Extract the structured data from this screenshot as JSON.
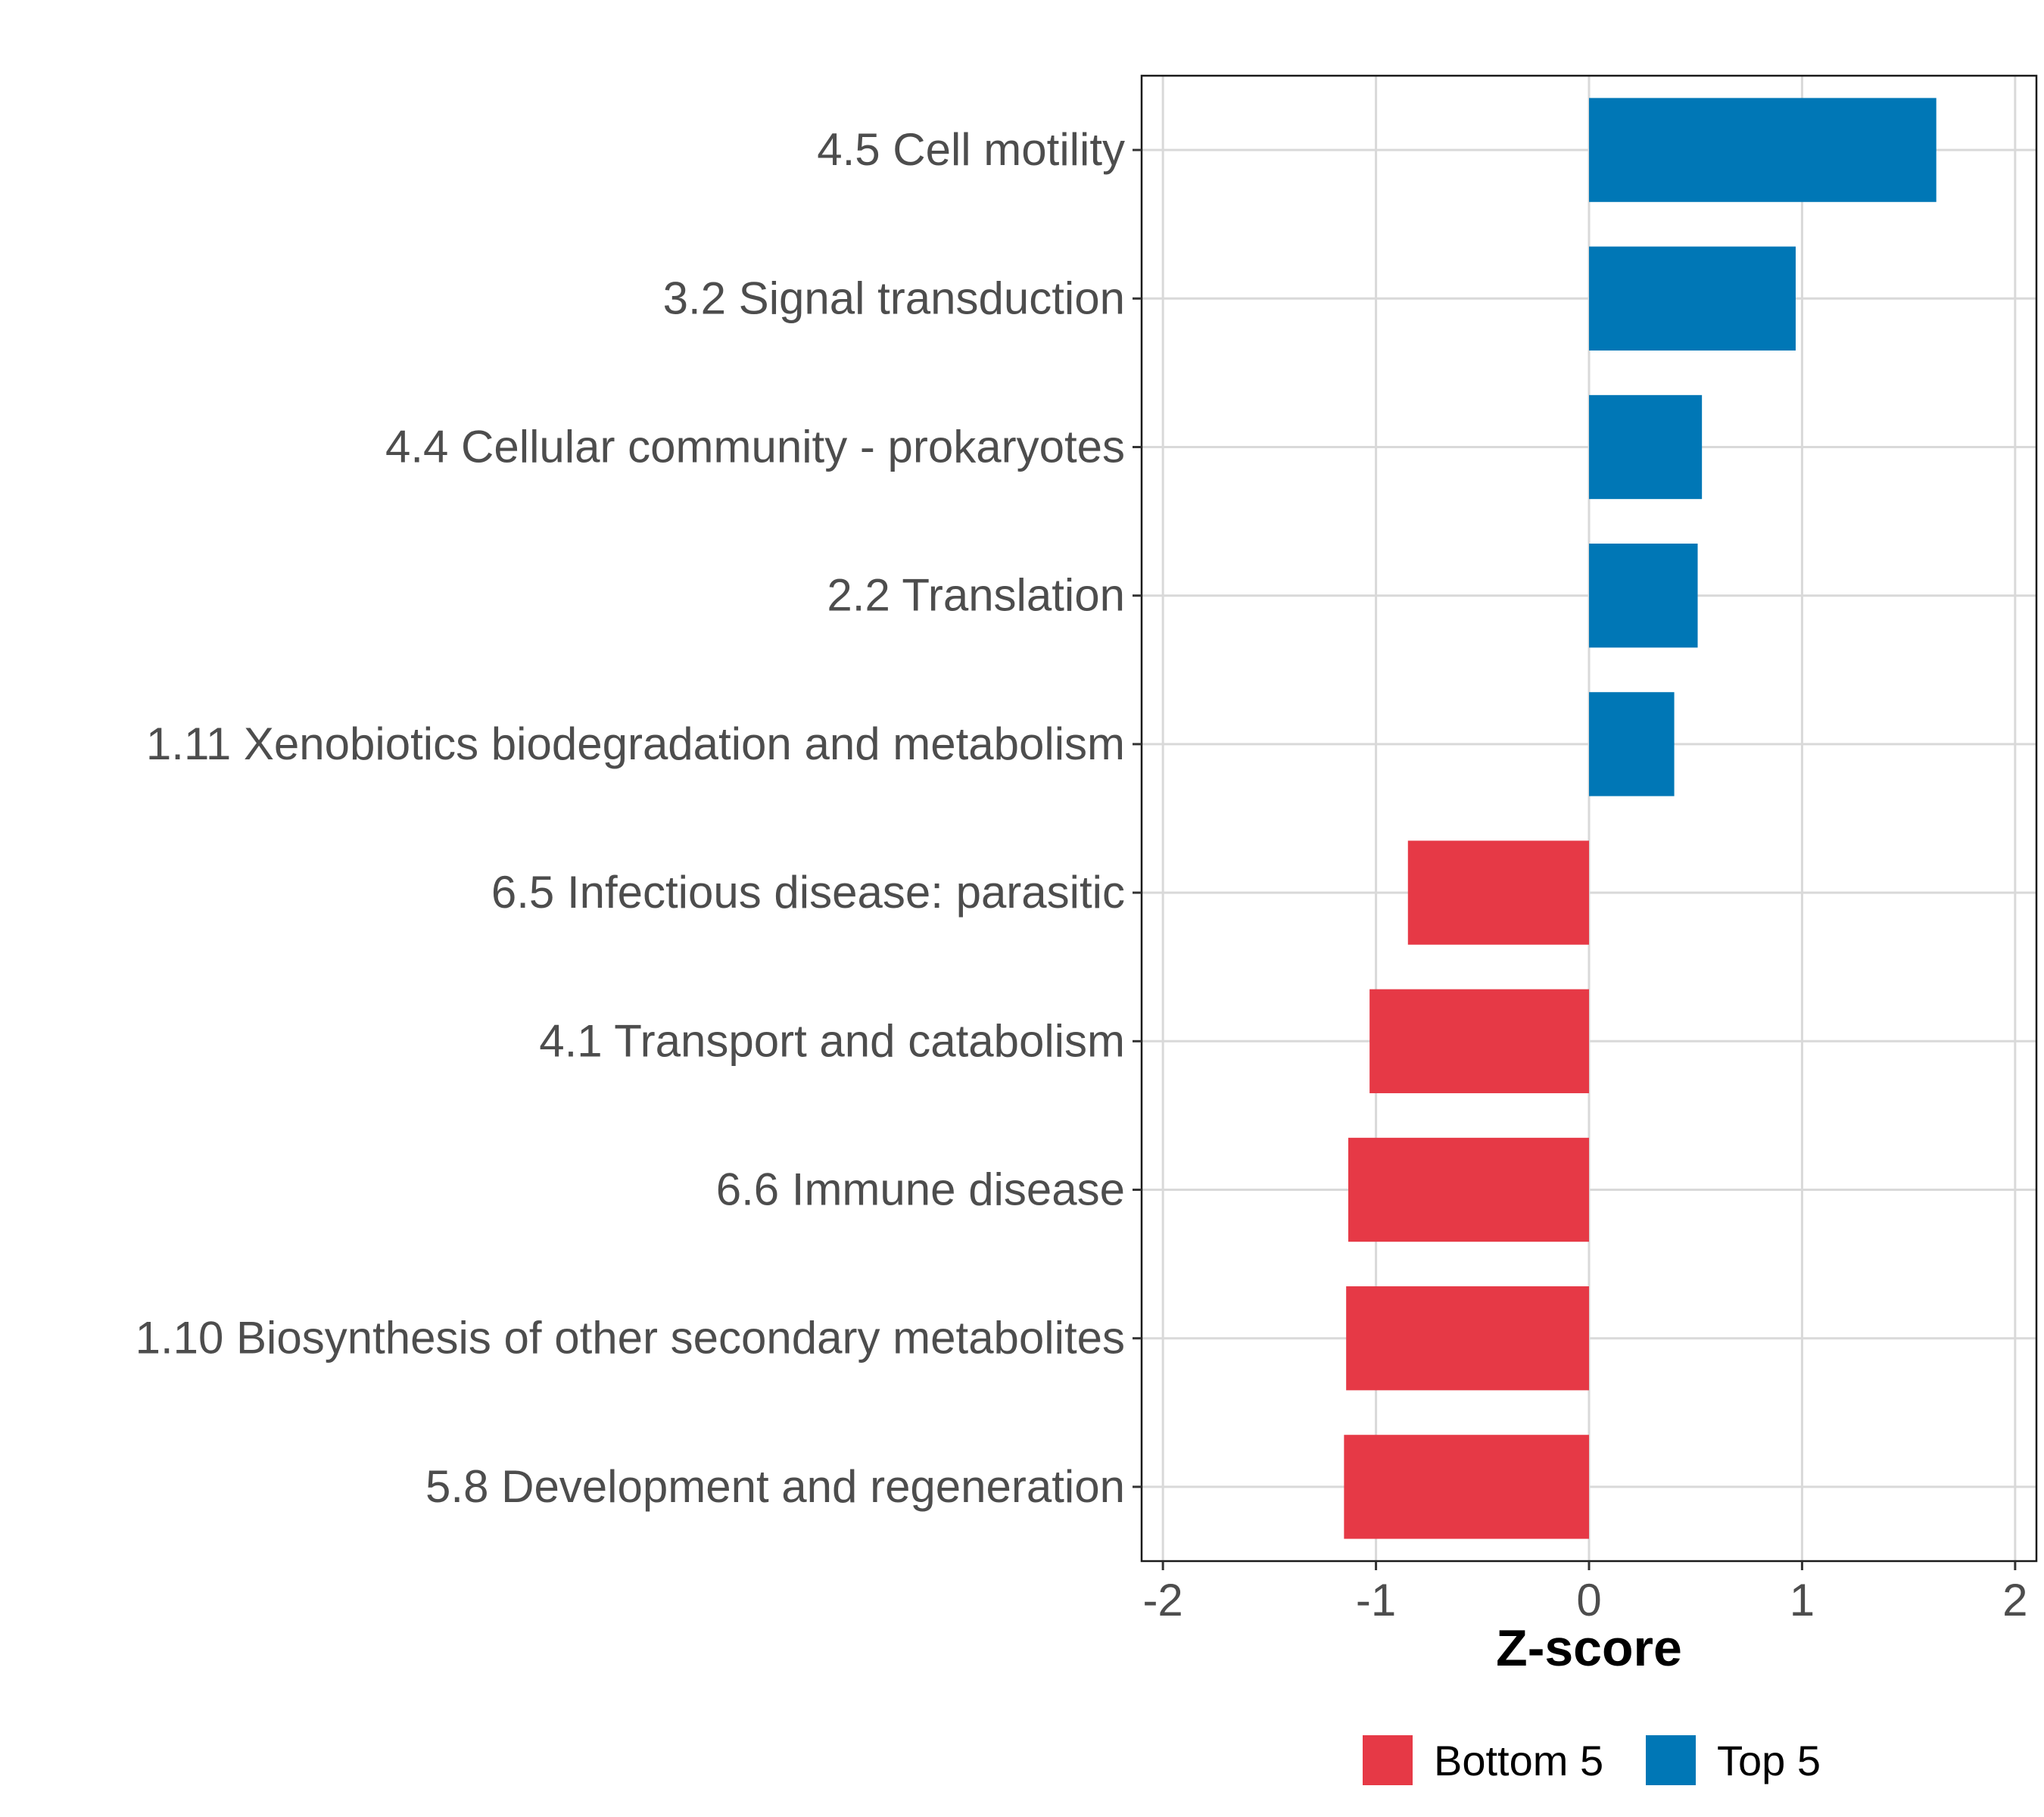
{
  "chart_data": {
    "type": "bar",
    "orientation": "horizontal",
    "title": "",
    "xlabel": "Z-score",
    "ylabel": "",
    "xlim": [
      -2.1,
      2.1
    ],
    "x_ticks": [
      -2,
      -1,
      0,
      1,
      2
    ],
    "x_tick_labels": [
      "-2",
      "-1",
      "0",
      "1",
      "2"
    ],
    "grid": true,
    "legend_position": "bottom",
    "categories": [
      "4.5 Cell motility",
      "3.2 Signal transduction",
      "4.4 Cellular community - prokaryotes",
      "2.2 Translation",
      "1.11 Xenobiotics biodegradation and metabolism",
      "6.5 Infectious disease: parasitic",
      "4.1 Transport and catabolism",
      "6.6 Immune disease",
      "1.10 Biosynthesis of other secondary metabolites",
      "5.8 Development and regeneration"
    ],
    "values": [
      1.63,
      0.97,
      0.53,
      0.51,
      0.4,
      -0.85,
      -1.03,
      -1.13,
      -1.14,
      -1.15
    ],
    "groups": [
      "Top 5",
      "Top 5",
      "Top 5",
      "Top 5",
      "Top 5",
      "Bottom 5",
      "Bottom 5",
      "Bottom 5",
      "Bottom 5",
      "Bottom 5"
    ],
    "legend": [
      {
        "name": "Bottom 5",
        "color": "#e63946"
      },
      {
        "name": "Top 5",
        "color": "#0077b6"
      }
    ]
  }
}
